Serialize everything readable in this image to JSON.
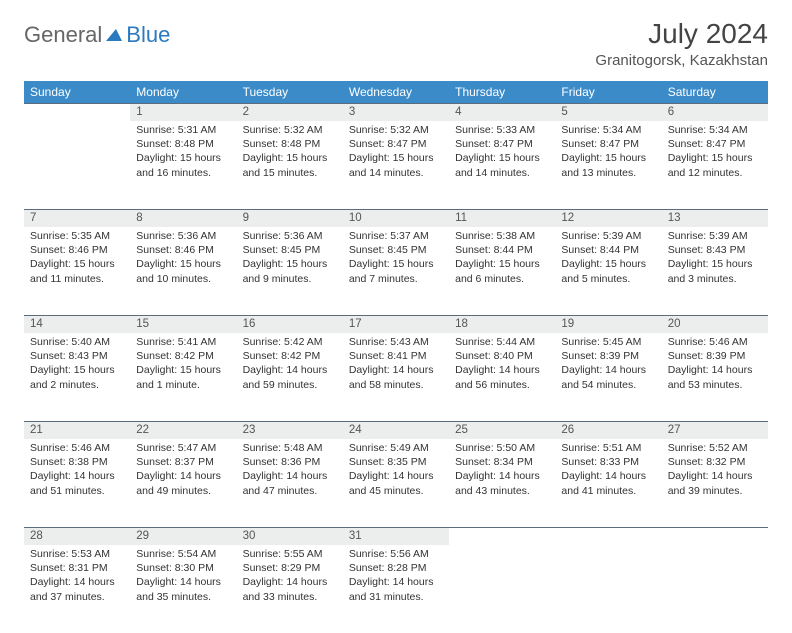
{
  "logo": {
    "text1": "General",
    "text2": "Blue",
    "accent": "#2a7abf"
  },
  "title": "July 2024",
  "location": "Granitogorsk, Kazakhstan",
  "weekdays": [
    "Sunday",
    "Monday",
    "Tuesday",
    "Wednesday",
    "Thursday",
    "Friday",
    "Saturday"
  ],
  "header_bg": "#3b8bc9",
  "daynum_bg": "#eceded",
  "rule_color": "#5b6c7d",
  "weeks": [
    [
      null,
      {
        "d": "1",
        "sr": "5:31 AM",
        "ss": "8:48 PM",
        "dl": "15 hours and 16 minutes."
      },
      {
        "d": "2",
        "sr": "5:32 AM",
        "ss": "8:48 PM",
        "dl": "15 hours and 15 minutes."
      },
      {
        "d": "3",
        "sr": "5:32 AM",
        "ss": "8:47 PM",
        "dl": "15 hours and 14 minutes."
      },
      {
        "d": "4",
        "sr": "5:33 AM",
        "ss": "8:47 PM",
        "dl": "15 hours and 14 minutes."
      },
      {
        "d": "5",
        "sr": "5:34 AM",
        "ss": "8:47 PM",
        "dl": "15 hours and 13 minutes."
      },
      {
        "d": "6",
        "sr": "5:34 AM",
        "ss": "8:47 PM",
        "dl": "15 hours and 12 minutes."
      }
    ],
    [
      {
        "d": "7",
        "sr": "5:35 AM",
        "ss": "8:46 PM",
        "dl": "15 hours and 11 minutes."
      },
      {
        "d": "8",
        "sr": "5:36 AM",
        "ss": "8:46 PM",
        "dl": "15 hours and 10 minutes."
      },
      {
        "d": "9",
        "sr": "5:36 AM",
        "ss": "8:45 PM",
        "dl": "15 hours and 9 minutes."
      },
      {
        "d": "10",
        "sr": "5:37 AM",
        "ss": "8:45 PM",
        "dl": "15 hours and 7 minutes."
      },
      {
        "d": "11",
        "sr": "5:38 AM",
        "ss": "8:44 PM",
        "dl": "15 hours and 6 minutes."
      },
      {
        "d": "12",
        "sr": "5:39 AM",
        "ss": "8:44 PM",
        "dl": "15 hours and 5 minutes."
      },
      {
        "d": "13",
        "sr": "5:39 AM",
        "ss": "8:43 PM",
        "dl": "15 hours and 3 minutes."
      }
    ],
    [
      {
        "d": "14",
        "sr": "5:40 AM",
        "ss": "8:43 PM",
        "dl": "15 hours and 2 minutes."
      },
      {
        "d": "15",
        "sr": "5:41 AM",
        "ss": "8:42 PM",
        "dl": "15 hours and 1 minute."
      },
      {
        "d": "16",
        "sr": "5:42 AM",
        "ss": "8:42 PM",
        "dl": "14 hours and 59 minutes."
      },
      {
        "d": "17",
        "sr": "5:43 AM",
        "ss": "8:41 PM",
        "dl": "14 hours and 58 minutes."
      },
      {
        "d": "18",
        "sr": "5:44 AM",
        "ss": "8:40 PM",
        "dl": "14 hours and 56 minutes."
      },
      {
        "d": "19",
        "sr": "5:45 AM",
        "ss": "8:39 PM",
        "dl": "14 hours and 54 minutes."
      },
      {
        "d": "20",
        "sr": "5:46 AM",
        "ss": "8:39 PM",
        "dl": "14 hours and 53 minutes."
      }
    ],
    [
      {
        "d": "21",
        "sr": "5:46 AM",
        "ss": "8:38 PM",
        "dl": "14 hours and 51 minutes."
      },
      {
        "d": "22",
        "sr": "5:47 AM",
        "ss": "8:37 PM",
        "dl": "14 hours and 49 minutes."
      },
      {
        "d": "23",
        "sr": "5:48 AM",
        "ss": "8:36 PM",
        "dl": "14 hours and 47 minutes."
      },
      {
        "d": "24",
        "sr": "5:49 AM",
        "ss": "8:35 PM",
        "dl": "14 hours and 45 minutes."
      },
      {
        "d": "25",
        "sr": "5:50 AM",
        "ss": "8:34 PM",
        "dl": "14 hours and 43 minutes."
      },
      {
        "d": "26",
        "sr": "5:51 AM",
        "ss": "8:33 PM",
        "dl": "14 hours and 41 minutes."
      },
      {
        "d": "27",
        "sr": "5:52 AM",
        "ss": "8:32 PM",
        "dl": "14 hours and 39 minutes."
      }
    ],
    [
      {
        "d": "28",
        "sr": "5:53 AM",
        "ss": "8:31 PM",
        "dl": "14 hours and 37 minutes."
      },
      {
        "d": "29",
        "sr": "5:54 AM",
        "ss": "8:30 PM",
        "dl": "14 hours and 35 minutes."
      },
      {
        "d": "30",
        "sr": "5:55 AM",
        "ss": "8:29 PM",
        "dl": "14 hours and 33 minutes."
      },
      {
        "d": "31",
        "sr": "5:56 AM",
        "ss": "8:28 PM",
        "dl": "14 hours and 31 minutes."
      },
      null,
      null,
      null
    ]
  ],
  "labels": {
    "sunrise": "Sunrise: ",
    "sunset": "Sunset: ",
    "daylight": "Daylight: "
  }
}
